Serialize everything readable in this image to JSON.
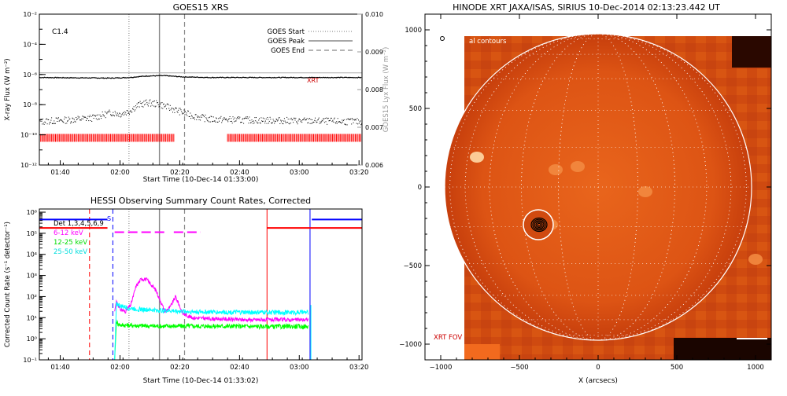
{
  "chart_data": [
    {
      "type": "line",
      "title": "GOES15 XRS",
      "xlabel": "Start Time (10-Dec-14 01:33:00)",
      "ylabel": "X-ray Flux (W m⁻²)",
      "ylabel_right": "GOES15 Lyx Flux (W m⁻²)",
      "x_range_hours": [
        1.55,
        3.35
      ],
      "x_ticks": [
        {
          "t": 1.6667,
          "label": "01:40"
        },
        {
          "t": 2.0,
          "label": "02:00"
        },
        {
          "t": 2.3333,
          "label": "02:20"
        },
        {
          "t": 2.6667,
          "label": "02:40"
        },
        {
          "t": 3.0,
          "label": "03:00"
        },
        {
          "t": 3.3333,
          "label": "03:20"
        }
      ],
      "y_log_range": [
        -12,
        -2
      ],
      "y_ticks": [
        {
          "exp": -2,
          "label": "10⁻²"
        },
        {
          "exp": -4,
          "label": "10⁻⁴"
        },
        {
          "exp": -6,
          "label": "10⁻⁶"
        },
        {
          "exp": -8,
          "label": "10⁻⁸"
        },
        {
          "exp": -10,
          "label": "10⁻¹⁰"
        },
        {
          "exp": -12,
          "label": "10⁻¹²"
        }
      ],
      "y_right_range": [
        0.006,
        0.01
      ],
      "y_right_ticks": [
        {
          "v": 0.006,
          "label": "0.006"
        },
        {
          "v": 0.007,
          "label": "0.007"
        },
        {
          "v": 0.008,
          "label": "0.008"
        },
        {
          "v": 0.009,
          "label": "0.009"
        },
        {
          "v": 0.01,
          "label": "0.010"
        }
      ],
      "class_label": "C1.4",
      "legend": [
        {
          "name": "GOES Start",
          "style": "dotted"
        },
        {
          "name": "GOES Peak",
          "style": "solid"
        },
        {
          "name": "GOES End",
          "style": "dashed"
        }
      ],
      "event_times": {
        "start": 2.05,
        "peak": 2.22,
        "end": 2.36
      },
      "long_channel": {
        "x": [
          1.55,
          1.75,
          1.95,
          2.05,
          2.15,
          2.25,
          2.35,
          2.5,
          2.8,
          3.1,
          3.35
        ],
        "log_y": [
          -6.2,
          -6.22,
          -6.24,
          -6.2,
          -6.1,
          -6.08,
          -6.16,
          -6.2,
          -6.2,
          -6.2,
          -6.2
        ]
      },
      "short_channel": {
        "x": [
          1.55,
          1.7,
          1.85,
          1.95,
          2.0,
          2.05,
          2.1,
          2.15,
          2.22,
          2.3,
          2.4,
          2.5,
          2.7,
          3.0,
          3.3
        ],
        "log_y": [
          -9.1,
          -9.0,
          -8.85,
          -8.5,
          -8.6,
          -8.4,
          -8.0,
          -7.85,
          -7.95,
          -8.3,
          -8.7,
          -8.95,
          -9.0,
          -9.05,
          -9.1
        ]
      },
      "lyx_line": {
        "x": [
          1.55,
          3.35
        ],
        "log_y": [
          -6.0,
          -6.0
        ]
      },
      "xrt_label": "XRT",
      "xrt_intervals": [
        [
          1.55,
          2.3
        ],
        [
          2.6,
          3.35
        ]
      ],
      "xrt_level_log": -10.2
    },
    {
      "type": "line",
      "title": "HESSI Observing Summary Count Rates, Corrected",
      "xlabel": "Start Time (10-Dec-14 01:33:02)",
      "ylabel": "Corrected Count Rate (s⁻¹ detector⁻¹)",
      "x_range_hours": [
        1.55,
        3.35
      ],
      "x_ticks": [
        {
          "t": 1.6667,
          "label": "01:40"
        },
        {
          "t": 2.0,
          "label": "02:00"
        },
        {
          "t": 2.3333,
          "label": "02:20"
        },
        {
          "t": 2.6667,
          "label": "02:40"
        },
        {
          "t": 3.0,
          "label": "03:00"
        },
        {
          "t": 3.3333,
          "label": "03:20"
        }
      ],
      "y_log_range": [
        -1,
        6
      ],
      "y_ticks": [
        {
          "exp": 6,
          "label": "10⁶"
        },
        {
          "exp": 5,
          "label": "10⁵"
        },
        {
          "exp": 4,
          "label": "10⁴"
        },
        {
          "exp": 3,
          "label": "10³"
        },
        {
          "exp": 2,
          "label": "10²"
        },
        {
          "exp": 1,
          "label": "10¹"
        },
        {
          "exp": 0,
          "label": "10⁰"
        },
        {
          "exp": -1,
          "label": "10⁻¹"
        }
      ],
      "detector_label": "Det 1,3,4,5,6,9",
      "flag_label": "S",
      "series": [
        {
          "name": "6-12 keV",
          "color": "#ff00ff",
          "x": [
            1.97,
            1.98,
            2.0,
            2.03,
            2.06,
            2.09,
            2.12,
            2.15,
            2.2,
            2.25,
            2.28,
            2.31,
            2.35,
            2.4,
            2.5,
            2.7,
            2.9,
            3.05
          ],
          "log_y": [
            1.3,
            1.8,
            1.4,
            1.3,
            1.6,
            2.5,
            2.85,
            2.8,
            2.3,
            1.3,
            1.5,
            2.0,
            1.2,
            1.0,
            0.95,
            0.9,
            0.9,
            0.9
          ]
        },
        {
          "name": "12-25 keV",
          "color": "#00ff00",
          "x": [
            1.97,
            1.98,
            2.0,
            2.2,
            2.5,
            2.8,
            3.05
          ],
          "log_y": [
            -1.0,
            0.8,
            0.65,
            0.6,
            0.6,
            0.58,
            0.58
          ]
        },
        {
          "name": "25-50 keV",
          "color": "#00ffff",
          "x": [
            1.97,
            1.98,
            2.0,
            2.05,
            2.1,
            2.2,
            2.4,
            2.7,
            3.05
          ],
          "log_y": [
            -1.0,
            1.7,
            1.55,
            1.45,
            1.4,
            1.35,
            1.28,
            1.25,
            1.25
          ]
        }
      ],
      "attenuator_blue": {
        "color": "#0000ff",
        "segments": [
          [
            1.55,
            1.93,
            5.65
          ],
          [
            3.07,
            3.35,
            5.65
          ]
        ]
      },
      "attenuator_red": {
        "color": "#ff0000",
        "segments": [
          [
            1.55,
            1.93,
            5.25
          ],
          [
            2.82,
            3.35,
            5.25
          ]
        ]
      },
      "magenta_dash_segments": [
        [
          1.97,
          2.25,
          5.05
        ],
        [
          2.3,
          2.45,
          5.05
        ]
      ],
      "night_markers": [
        {
          "t": 1.83,
          "color": "#ff0000",
          "style": "dashed"
        },
        {
          "t": 1.96,
          "color": "#0000ff",
          "style": "dashed"
        },
        {
          "t": 2.82,
          "color": "#ff0000",
          "style": "solid"
        },
        {
          "t": 3.06,
          "color": "#0000ff",
          "style": "solid"
        }
      ],
      "event_times": {
        "start": 2.05,
        "peak": 2.22,
        "end": 2.36
      }
    },
    {
      "type": "heatmap",
      "title": "HINODE XRT JAXA/ISAS, SIRIUS 10-Dec-2014 02:13:23.442 UT",
      "xlabel": "X (arcsecs)",
      "x_range": [
        -1100,
        1100
      ],
      "y_range": [
        -1100,
        1100
      ],
      "x_ticks": [
        {
          "v": -1000,
          "label": "−1000"
        },
        {
          "v": -500,
          "label": "−500"
        },
        {
          "v": 0,
          "label": "0"
        },
        {
          "v": 500,
          "label": "500"
        },
        {
          "v": 1000,
          "label": "1000"
        }
      ],
      "y_ticks": [
        {
          "v": 1000,
          "label": "1000"
        },
        {
          "v": 500,
          "label": "500"
        },
        {
          "v": 0,
          "label": "0"
        },
        {
          "v": -500,
          "label": "−500"
        },
        {
          "v": -1000,
          "label": "−1000"
        }
      ],
      "disk_radius_arcsec": 975,
      "fov": {
        "x0": -850,
        "x1": 1100,
        "y0": -1100,
        "y1": 960
      },
      "contour_label": "al contours",
      "fov_label": "XRT FOV",
      "source_center": [
        -380,
        -240
      ],
      "bright_regions": [
        [
          -770,
          190
        ],
        [
          -300,
          -240
        ],
        [
          -270,
          110
        ],
        [
          -130,
          130
        ],
        [
          300,
          -30
        ],
        [
          1000,
          -460
        ]
      ]
    }
  ]
}
